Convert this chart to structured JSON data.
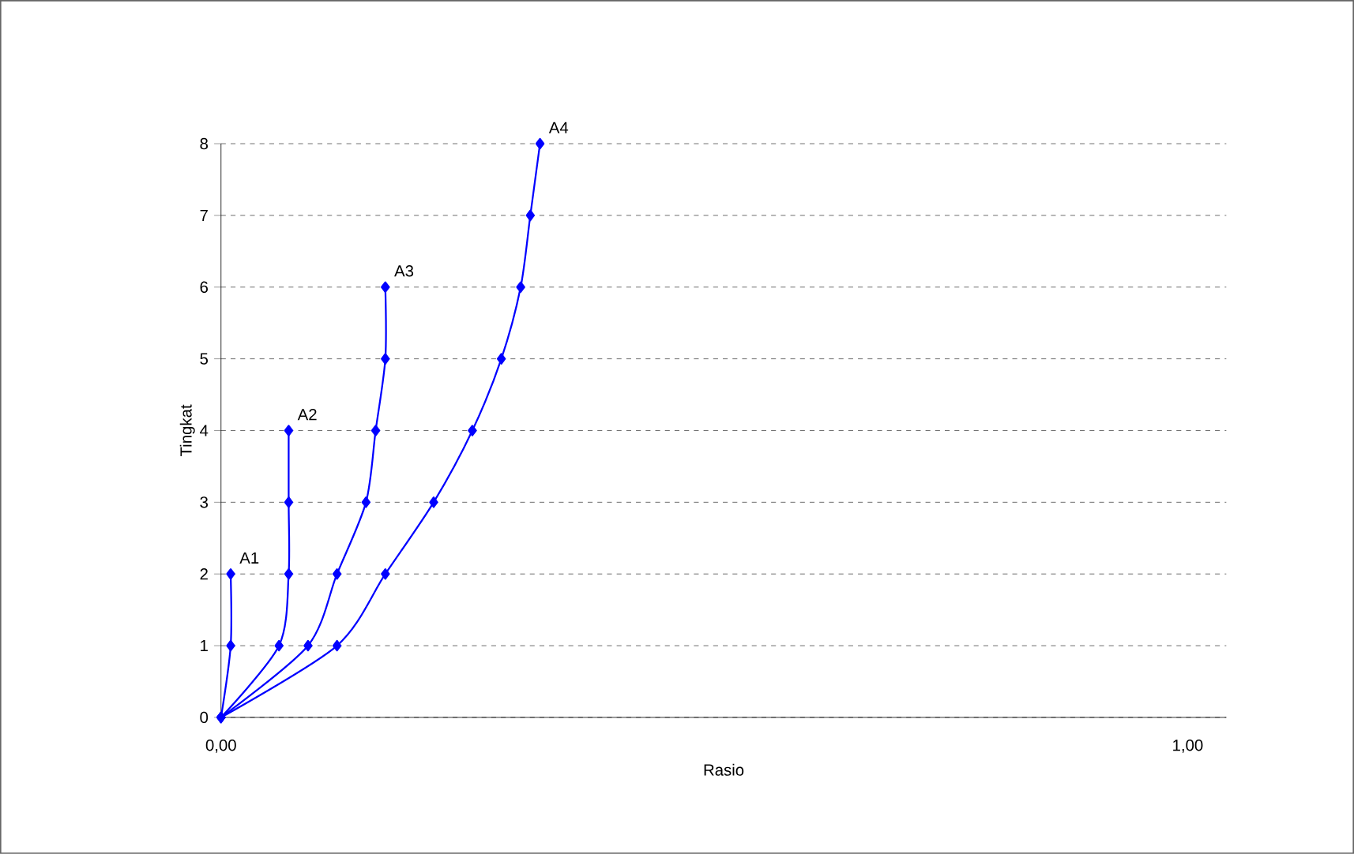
{
  "chart_data": {
    "type": "line",
    "xlabel": "Rasio",
    "ylabel": "Tingkat",
    "xlim": [
      0,
      1.04
    ],
    "xticks": [
      {
        "value": 0,
        "label": "0,00"
      },
      {
        "value": 1,
        "label": "1,00"
      }
    ],
    "ylim": [
      0,
      8
    ],
    "yticks": [
      0,
      1,
      2,
      3,
      4,
      5,
      6,
      7,
      8
    ],
    "grid": "y",
    "marker": "diamond",
    "line_style": "solid",
    "legend": false,
    "series": [
      {
        "name": "A1",
        "color": "#0000ff",
        "x": [
          0,
          0.01,
          0.01
        ],
        "values": [
          0,
          1,
          2
        ]
      },
      {
        "name": "A2",
        "color": "#0000ff",
        "x": [
          0,
          0.06,
          0.07,
          0.07,
          0.07
        ],
        "values": [
          0,
          1,
          2,
          3,
          4
        ]
      },
      {
        "name": "A3",
        "color": "#0000ff",
        "x": [
          0,
          0.09,
          0.12,
          0.15,
          0.16,
          0.17,
          0.17
        ],
        "values": [
          0,
          1,
          2,
          3,
          4,
          5,
          6
        ]
      },
      {
        "name": "A4",
        "color": "#0000ff",
        "x": [
          0,
          0.12,
          0.17,
          0.22,
          0.26,
          0.29,
          0.31,
          0.32,
          0.33
        ],
        "values": [
          0,
          1,
          2,
          3,
          4,
          5,
          6,
          7,
          8
        ]
      }
    ]
  }
}
